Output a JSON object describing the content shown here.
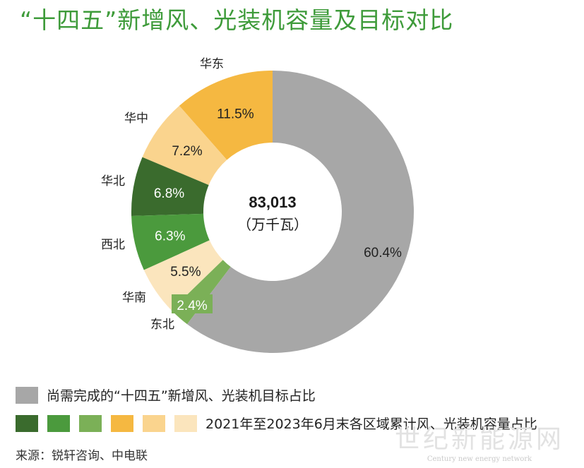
{
  "title": "“十四五”新增风、光装机容量及目标对比",
  "center": {
    "value": "83,013",
    "unit": "（万千瓦）"
  },
  "chart_data": {
    "type": "pie",
    "title": "“十四五”新增风、光装机容量及目标对比",
    "total": "83,013",
    "unit": "（万千瓦）",
    "slices": [
      {
        "key": "east",
        "label": "华东",
        "value": 11.5,
        "display": "11.5%",
        "color": "#f5b841"
      },
      {
        "key": "central",
        "label": "华中",
        "value": 7.2,
        "display": "7.2%",
        "color": "#fad48e"
      },
      {
        "key": "north",
        "label": "华北",
        "value": 6.8,
        "display": "6.8%",
        "color": "#3a6b2d"
      },
      {
        "key": "northwest",
        "label": "西北",
        "value": 6.3,
        "display": "6.3%",
        "color": "#4b9a3d"
      },
      {
        "key": "south",
        "label": "华南",
        "value": 5.5,
        "display": "5.5%",
        "color": "#fbe5bd"
      },
      {
        "key": "northeast",
        "label": "东北",
        "value": 2.4,
        "display": "2.4%",
        "color": "#7bb057"
      },
      {
        "key": "remaining",
        "label": "",
        "value": 60.4,
        "display": "60.4%",
        "color": "#a7a7a7"
      }
    ]
  },
  "legend": {
    "row1_color": "#a7a7a7",
    "row1_text": "尚需完成的“十四五”新增风、光装机目标占比",
    "row2_colors": [
      "#3a6b2d",
      "#4b9a3d",
      "#7bb057",
      "#f5b841",
      "#fad48e",
      "#fbe5bd"
    ],
    "row2_text": "2021年至2023年6月末各区域累计风、光装机容量占比"
  },
  "source": "来源：锐轩咨询、中电联",
  "watermark": {
    "big": "世纪新能源网",
    "small": "Century new energy network"
  }
}
